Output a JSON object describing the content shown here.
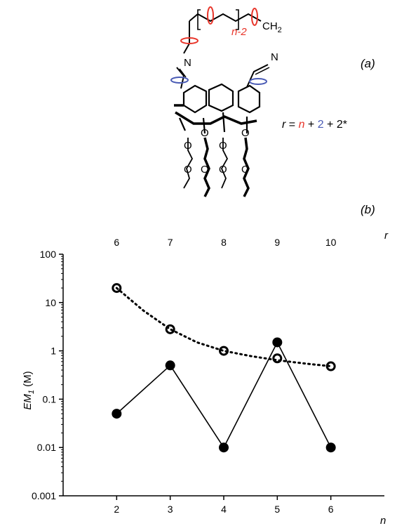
{
  "panel_labels": {
    "a": "(a)",
    "b": "(b)"
  },
  "structure": {
    "label_ch2": "CH",
    "label_ch2_sub": "2",
    "label_nminus2": "n-2",
    "label_N_left": "N",
    "label_N_right": "N",
    "label_O": "O",
    "formula": {
      "r": "r",
      "eq": " = ",
      "n": "n",
      "plus1": " + ",
      "two_blue": "2",
      "rest": " + 2*"
    },
    "colors": {
      "bond": "#000000",
      "rotation_red": "#e8352a",
      "rotation_blue": "#4a5bb5"
    },
    "icons": [
      "red-rotation-arrow-icon",
      "blue-rotation-arrow-icon"
    ]
  },
  "chart_data": {
    "type": "scatter",
    "x_bottom": {
      "label": "n",
      "ticks": [
        "2",
        "3",
        "4",
        "5",
        "6"
      ],
      "range": [
        1,
        7
      ]
    },
    "x_top": {
      "label": "r",
      "ticks": [
        "6",
        "7",
        "8",
        "9",
        "10"
      ]
    },
    "y": {
      "label": "EM",
      "label_sub": "1",
      "label_unit": " (M)",
      "scale": "log",
      "range": [
        0.001,
        100
      ],
      "ticks": [
        "100",
        "10",
        "1",
        "0.1",
        "0.01",
        "0.001"
      ]
    },
    "series": [
      {
        "marker": "filled-circle",
        "line": "solid",
        "x": [
          2,
          3,
          4,
          5,
          6
        ],
        "y": [
          0.05,
          0.5,
          0.01,
          1.5,
          0.01
        ]
      },
      {
        "marker": "open-circle",
        "line": "none",
        "x": [
          2,
          3,
          4,
          5,
          6
        ],
        "y": [
          20,
          2.8,
          1.0,
          0.7,
          0.48
        ]
      },
      {
        "marker": "none",
        "line": "dotted",
        "fit": true,
        "x": [
          2,
          2.5,
          3,
          3.5,
          4,
          4.5,
          5,
          5.5,
          6
        ],
        "y": [
          20,
          6.8,
          2.8,
          1.5,
          1.0,
          0.78,
          0.64,
          0.55,
          0.48
        ]
      }
    ]
  }
}
